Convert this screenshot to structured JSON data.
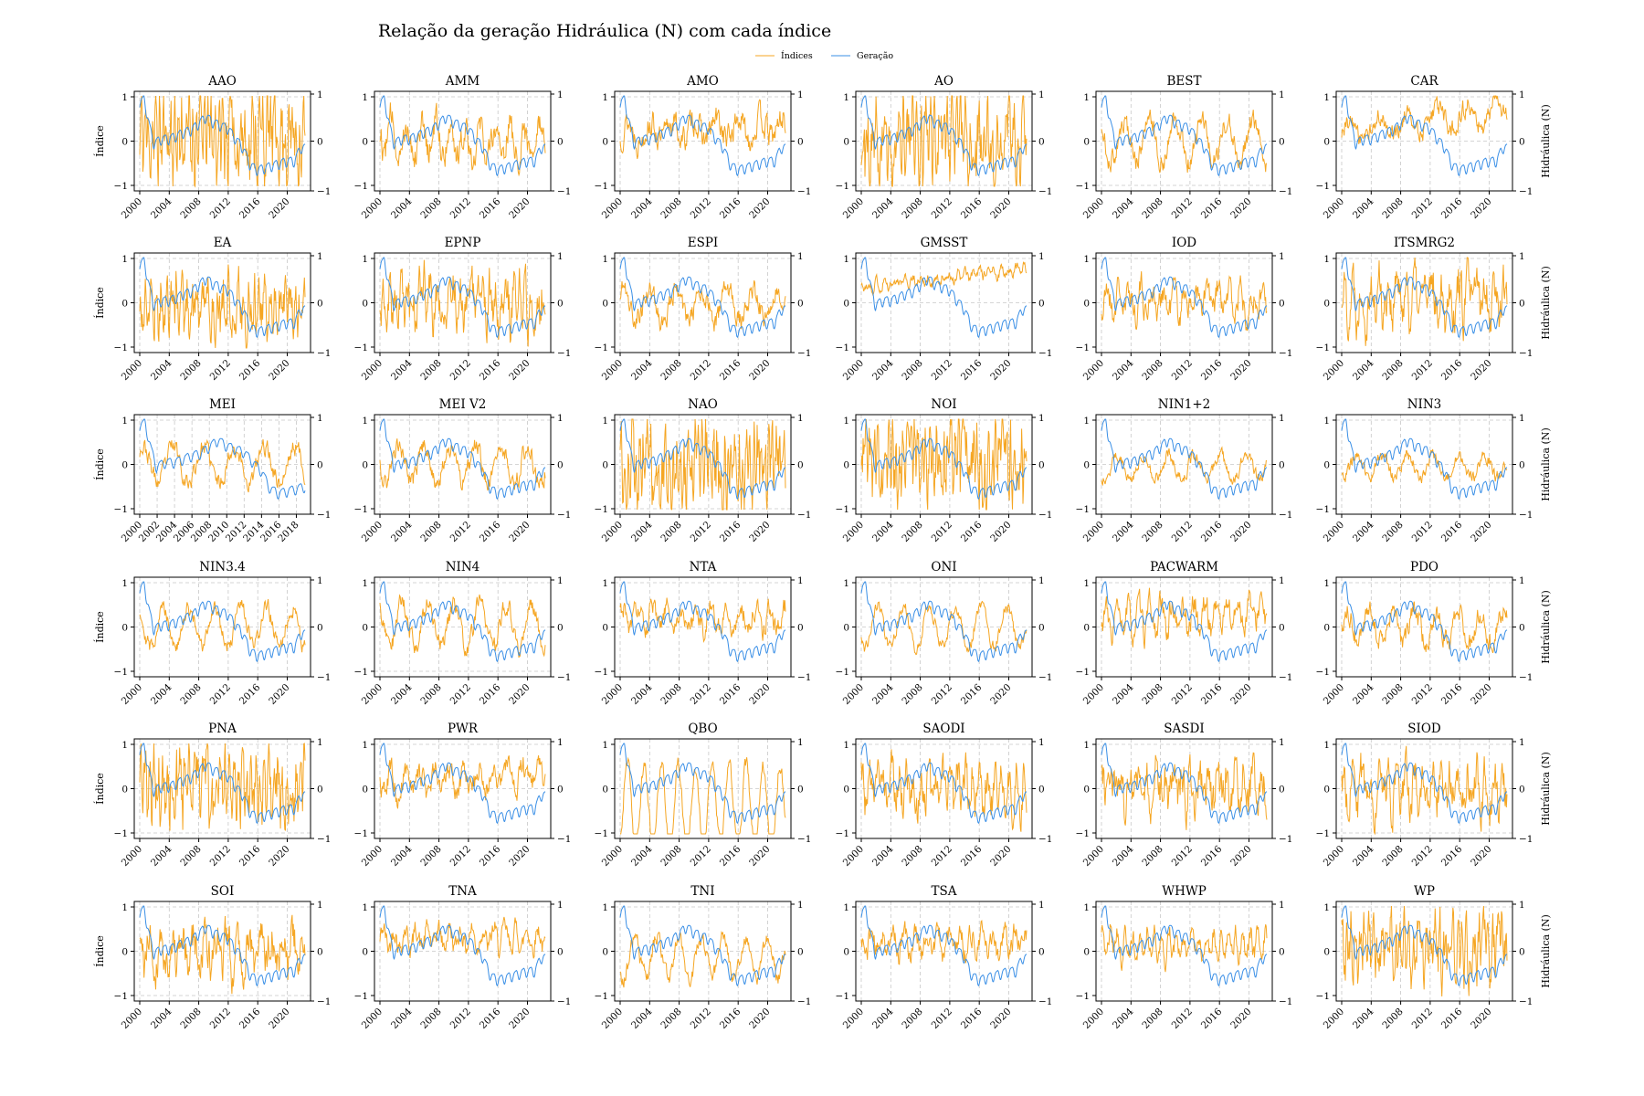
{
  "chart_data": {
    "type": "line",
    "title": "Relação da geração Hidráulica (N) com cada índice",
    "legend": {
      "placement": "top-center",
      "entries": [
        "Índices",
        "Geração"
      ]
    },
    "colors": {
      "indices": "#f5a623",
      "geracao": "#3a8fe6",
      "grid": "#c8c8c8"
    },
    "ylabel_left": "Índice",
    "ylabel_right": "Hidráulica (N)",
    "grid": true,
    "x_range": [
      "2000-01",
      "2022-06"
    ],
    "x_ticks": [
      "2000",
      "2004",
      "2008",
      "2012",
      "2016",
      "2020"
    ],
    "y_range_right": [
      -1,
      1
    ],
    "y_ticks_right": [
      "−1",
      "0",
      "1"
    ],
    "geracao_anchors": [
      [
        2000.0,
        0.85
      ],
      [
        2000.6,
        0.95
      ],
      [
        2001.3,
        0.35
      ],
      [
        2001.9,
        -0.05
      ],
      [
        2003.0,
        0.05
      ],
      [
        2004.0,
        0.05
      ],
      [
        2005.0,
        0.12
      ],
      [
        2006.0,
        0.2
      ],
      [
        2007.0,
        0.25
      ],
      [
        2008.0,
        0.4
      ],
      [
        2009.0,
        0.55
      ],
      [
        2010.0,
        0.42
      ],
      [
        2011.0,
        0.35
      ],
      [
        2012.0,
        0.28
      ],
      [
        2013.0,
        0.05
      ],
      [
        2014.0,
        -0.15
      ],
      [
        2015.0,
        -0.55
      ],
      [
        2016.0,
        -0.65
      ],
      [
        2017.0,
        -0.6
      ],
      [
        2018.0,
        -0.55
      ],
      [
        2019.0,
        -0.5
      ],
      [
        2020.0,
        -0.45
      ],
      [
        2021.0,
        -0.45
      ],
      [
        2021.8,
        -0.15
      ]
    ],
    "panels": [
      {
        "name": "AAO",
        "y_ticks_left": [
          "1",
          "0",
          "−1"
        ],
        "dashed_ref": [
          1,
          -1
        ],
        "index_pattern": {
          "mean": 0.15,
          "amplitude": 0.55,
          "period_years": 0.5,
          "noise": 0.75,
          "trend": 0.0,
          "seed": 11
        }
      },
      {
        "name": "AMM",
        "y_ticks_left": [
          "1",
          "0",
          "−1"
        ],
        "dashed_ref": [
          1
        ],
        "index_pattern": {
          "mean": 0.15,
          "amplitude": 0.35,
          "period_years": 2.0,
          "noise": 0.3,
          "trend": -0.01,
          "seed": 12
        }
      },
      {
        "name": "AMO",
        "y_ticks_left": [
          "1",
          "0",
          "−1"
        ],
        "dashed_ref": [
          1
        ],
        "index_pattern": {
          "mean": 0.2,
          "amplitude": 0.22,
          "period_years": 3.0,
          "noise": 0.25,
          "trend": 0.005,
          "seed": 13
        }
      },
      {
        "name": "AO",
        "y_ticks_left": [
          "1",
          "0",
          "−1"
        ],
        "dashed_ref": [
          1,
          -1
        ],
        "index_pattern": {
          "mean": 0.0,
          "amplitude": 0.45,
          "period_years": 0.6,
          "noise": 0.7,
          "trend": 0.0,
          "seed": 14
        }
      },
      {
        "name": "BEST",
        "y_ticks_left": [
          "1",
          "0",
          "−1"
        ],
        "dashed_ref": [
          -1
        ],
        "index_pattern": {
          "mean": 0.0,
          "amplitude": 0.45,
          "period_years": 3.5,
          "noise": 0.2,
          "trend": 0.0,
          "seed": 15
        }
      },
      {
        "name": "CAR",
        "y_ticks_left": [
          "1",
          "0",
          "−1"
        ],
        "dashed_ref": [
          1
        ],
        "index_pattern": {
          "mean": 0.2,
          "amplitude": 0.25,
          "period_years": 4.0,
          "noise": 0.18,
          "trend": 0.02,
          "seed": 16
        }
      },
      {
        "name": "EA",
        "y_ticks_left": [
          "1",
          "0",
          "−1"
        ],
        "dashed_ref": [
          1
        ],
        "index_pattern": {
          "mean": -0.05,
          "amplitude": 0.35,
          "period_years": 0.7,
          "noise": 0.5,
          "trend": 0.0,
          "seed": 17
        }
      },
      {
        "name": "EPNP",
        "y_ticks_left": [
          "1",
          "0",
          "−1"
        ],
        "dashed_ref": [
          1
        ],
        "index_pattern": {
          "mean": 0.0,
          "amplitude": 0.35,
          "period_years": 0.8,
          "noise": 0.45,
          "trend": 0.0,
          "seed": 18
        }
      },
      {
        "name": "ESPI",
        "y_ticks_left": [
          "1",
          "0",
          "−1"
        ],
        "dashed_ref": [
          1
        ],
        "index_pattern": {
          "mean": -0.05,
          "amplitude": 0.35,
          "period_years": 3.5,
          "noise": 0.2,
          "trend": 0.0,
          "seed": 19
        }
      },
      {
        "name": "GMSST",
        "y_ticks_left": [
          "1",
          "0",
          "−1"
        ],
        "dashed_ref": [
          1
        ],
        "index_pattern": {
          "mean": 0.35,
          "amplitude": 0.08,
          "period_years": 1.0,
          "noise": 0.1,
          "trend": 0.018,
          "seed": 20
        }
      },
      {
        "name": "IOD",
        "y_ticks_left": [
          "1",
          "0",
          "−1"
        ],
        "dashed_ref": [
          1
        ],
        "index_pattern": {
          "mean": 0.05,
          "amplitude": 0.3,
          "period_years": 1.5,
          "noise": 0.28,
          "trend": 0.0,
          "seed": 21
        }
      },
      {
        "name": "ITSMRG2",
        "y_ticks_left": [
          "1",
          "0",
          "−1"
        ],
        "dashed_ref": [
          1
        ],
        "index_pattern": {
          "mean": 0.15,
          "amplitude": 0.4,
          "period_years": 1.2,
          "noise": 0.45,
          "trend": 0.0,
          "seed": 22
        }
      },
      {
        "name": "MEI",
        "x_range": [
          "2000-01",
          "2019-01"
        ],
        "x_ticks": [
          "2000",
          "2002",
          "2004",
          "2006",
          "2008",
          "2010",
          "2012",
          "2014",
          "2016",
          "2018"
        ],
        "y_ticks_left": [
          "1",
          "0",
          "−1"
        ],
        "dashed_ref": [
          1
        ],
        "index_pattern": {
          "mean": 0.0,
          "amplitude": 0.4,
          "period_years": 3.5,
          "noise": 0.18,
          "trend": 0.0,
          "seed": 23
        }
      },
      {
        "name": "MEI V2",
        "y_ticks_left": [
          "1",
          "0",
          "−1"
        ],
        "dashed_ref": [
          1
        ],
        "index_pattern": {
          "mean": 0.0,
          "amplitude": 0.4,
          "period_years": 3.5,
          "noise": 0.18,
          "trend": 0.0,
          "seed": 24
        }
      },
      {
        "name": "NAO",
        "y_ticks_left": [
          "1",
          "0",
          "−1"
        ],
        "dashed_ref": [
          1,
          -1
        ],
        "index_pattern": {
          "mean": 0.0,
          "amplitude": 0.45,
          "period_years": 0.5,
          "noise": 0.7,
          "trend": 0.0,
          "seed": 25
        }
      },
      {
        "name": "NOI",
        "y_ticks_left": [
          "1",
          "0",
          "−1"
        ],
        "dashed_ref": [
          1
        ],
        "index_pattern": {
          "mean": 0.05,
          "amplitude": 0.45,
          "period_years": 0.5,
          "noise": 0.7,
          "trend": 0.0,
          "seed": 26
        }
      },
      {
        "name": "NIN1+2",
        "y_ticks_left": [
          "1",
          "0",
          "−1"
        ],
        "dashed_ref": [
          1
        ],
        "index_pattern": {
          "mean": -0.05,
          "amplitude": 0.25,
          "period_years": 3.5,
          "noise": 0.12,
          "trend": 0.0,
          "seed": 27
        }
      },
      {
        "name": "NIN3",
        "y_ticks_left": [
          "1",
          "0",
          "−1"
        ],
        "dashed_ref": [
          1
        ],
        "index_pattern": {
          "mean": -0.05,
          "amplitude": 0.25,
          "period_years": 3.5,
          "noise": 0.12,
          "trend": 0.0,
          "seed": 28
        }
      },
      {
        "name": "NIN3.4",
        "y_ticks_left": [
          "1",
          "0",
          "−1"
        ],
        "dashed_ref": [
          1
        ],
        "index_pattern": {
          "mean": 0.0,
          "amplitude": 0.45,
          "period_years": 3.5,
          "noise": 0.15,
          "trend": 0.0,
          "seed": 29
        }
      },
      {
        "name": "NIN4",
        "y_ticks_left": [
          "1",
          "0",
          "−1"
        ],
        "dashed_ref": [
          1,
          -1
        ],
        "index_pattern": {
          "mean": 0.05,
          "amplitude": 0.5,
          "period_years": 3.5,
          "noise": 0.18,
          "trend": 0.0,
          "seed": 30
        }
      },
      {
        "name": "NTA",
        "y_ticks_left": [
          "1",
          "0",
          "−1"
        ],
        "dashed_ref": [
          1
        ],
        "index_pattern": {
          "mean": 0.2,
          "amplitude": 0.25,
          "period_years": 2.0,
          "noise": 0.2,
          "trend": 0.0,
          "seed": 31
        }
      },
      {
        "name": "ONI",
        "y_ticks_left": [
          "1",
          "0",
          "−1"
        ],
        "dashed_ref": [
          1
        ],
        "index_pattern": {
          "mean": 0.0,
          "amplitude": 0.45,
          "period_years": 3.5,
          "noise": 0.12,
          "trend": 0.0,
          "seed": 32
        }
      },
      {
        "name": "PACWARM",
        "y_ticks_left": [
          "1",
          "0",
          "−1"
        ],
        "dashed_ref": [
          1
        ],
        "index_pattern": {
          "mean": 0.1,
          "amplitude": 0.3,
          "period_years": 1.5,
          "noise": 0.25,
          "trend": 0.012,
          "seed": 33
        }
      },
      {
        "name": "PDO",
        "y_ticks_left": [
          "1",
          "0",
          "−1"
        ],
        "dashed_ref": [
          1
        ],
        "index_pattern": {
          "mean": 0.0,
          "amplitude": 0.35,
          "period_years": 3.0,
          "noise": 0.2,
          "trend": 0.0,
          "seed": 34
        }
      },
      {
        "name": "PNA",
        "y_ticks_left": [
          "1",
          "0",
          "−1"
        ],
        "dashed_ref": [
          1,
          -1
        ],
        "index_pattern": {
          "mean": 0.1,
          "amplitude": 0.45,
          "period_years": 0.6,
          "noise": 0.6,
          "trend": 0.0,
          "seed": 35
        }
      },
      {
        "name": "PWR",
        "y_ticks_left": [
          "1",
          "0",
          "−1"
        ],
        "dashed_ref": [
          1
        ],
        "index_pattern": {
          "mean": 0.1,
          "amplitude": 0.25,
          "period_years": 2.0,
          "noise": 0.22,
          "trend": 0.01,
          "seed": 36
        }
      },
      {
        "name": "QBO",
        "y_ticks_left": [
          "1",
          "0",
          "−1"
        ],
        "dashed_ref": [],
        "index_pattern": {
          "mean": -0.4,
          "amplitude": 0.95,
          "period_years": 2.3,
          "noise": 0.15,
          "trend": 0.0,
          "seed": 37
        }
      },
      {
        "name": "SAODI",
        "y_ticks_left": [
          "1",
          "0",
          "−1"
        ],
        "dashed_ref": [
          1
        ],
        "index_pattern": {
          "mean": 0.0,
          "amplitude": 0.4,
          "period_years": 1.0,
          "noise": 0.4,
          "trend": 0.0,
          "seed": 38
        }
      },
      {
        "name": "SASDI",
        "y_ticks_left": [
          "1",
          "0",
          "−1"
        ],
        "dashed_ref": [
          1
        ],
        "index_pattern": {
          "mean": 0.05,
          "amplitude": 0.35,
          "period_years": 1.2,
          "noise": 0.4,
          "trend": 0.0,
          "seed": 39
        }
      },
      {
        "name": "SIOD",
        "y_ticks_left": [
          "1",
          "0",
          "−1"
        ],
        "dashed_ref": [
          1,
          -1
        ],
        "index_pattern": {
          "mean": 0.0,
          "amplitude": 0.35,
          "period_years": 1.2,
          "noise": 0.4,
          "trend": 0.0,
          "seed": 40
        }
      },
      {
        "name": "SOI",
        "y_ticks_left": [
          "1",
          "0",
          "−1"
        ],
        "dashed_ref": [
          1,
          -1
        ],
        "index_pattern": {
          "mean": 0.0,
          "amplitude": 0.35,
          "period_years": 1.5,
          "noise": 0.4,
          "trend": 0.0,
          "seed": 41
        }
      },
      {
        "name": "TNA",
        "y_ticks_left": [
          "1",
          "0",
          "−1"
        ],
        "dashed_ref": [
          1
        ],
        "index_pattern": {
          "mean": 0.3,
          "amplitude": 0.22,
          "period_years": 1.5,
          "noise": 0.2,
          "trend": 0.0,
          "seed": 42
        }
      },
      {
        "name": "TNI",
        "y_ticks_left": [
          "1",
          "0",
          "−1"
        ],
        "dashed_ref": [
          1
        ],
        "index_pattern": {
          "mean": -0.15,
          "amplitude": 0.45,
          "period_years": 3.0,
          "noise": 0.15,
          "trend": 0.0,
          "seed": 43
        }
      },
      {
        "name": "TSA",
        "y_ticks_left": [
          "1",
          "0",
          "−1"
        ],
        "dashed_ref": [
          1
        ],
        "index_pattern": {
          "mean": 0.2,
          "amplitude": 0.25,
          "period_years": 1.5,
          "noise": 0.22,
          "trend": 0.0,
          "seed": 44
        }
      },
      {
        "name": "WHWP",
        "y_ticks_left": [
          "1",
          "0",
          "−1"
        ],
        "dashed_ref": [
          1
        ],
        "index_pattern": {
          "mean": 0.15,
          "amplitude": 0.3,
          "period_years": 1.0,
          "noise": 0.2,
          "trend": 0.0,
          "seed": 45
        }
      },
      {
        "name": "WP",
        "y_ticks_left": [
          "1",
          "0",
          "−1"
        ],
        "dashed_ref": [
          1
        ],
        "index_pattern": {
          "mean": 0.05,
          "amplitude": 0.35,
          "period_years": 0.6,
          "noise": 0.55,
          "trend": 0.0,
          "seed": 46
        }
      }
    ]
  }
}
